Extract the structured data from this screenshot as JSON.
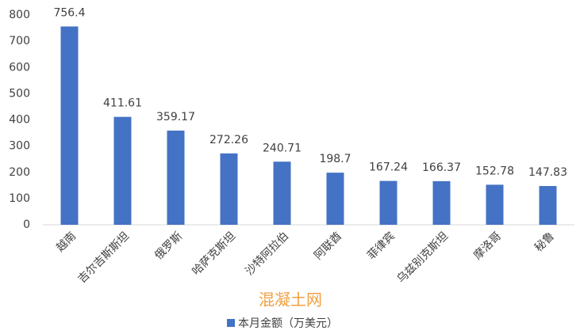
{
  "chart_data": {
    "type": "bar",
    "categories": [
      "越南",
      "吉尔吉斯斯坦",
      "俄罗斯",
      "哈萨克斯坦",
      "沙特阿拉伯",
      "阿联酋",
      "菲律宾",
      "乌兹别克斯坦",
      "摩洛哥",
      "秘鲁"
    ],
    "series": [
      {
        "name": "本月金额（万美元）",
        "color": "#4472c4",
        "values": [
          756.4,
          411.61,
          359.17,
          272.26,
          240.71,
          198.7,
          167.24,
          166.37,
          152.78,
          147.83
        ]
      }
    ],
    "ylim": [
      0,
      800
    ],
    "yticks": [
      0,
      100,
      200,
      300,
      400,
      500,
      600,
      700,
      800
    ],
    "grid": false,
    "legend": "bottom",
    "watermark": "混凝土网"
  }
}
